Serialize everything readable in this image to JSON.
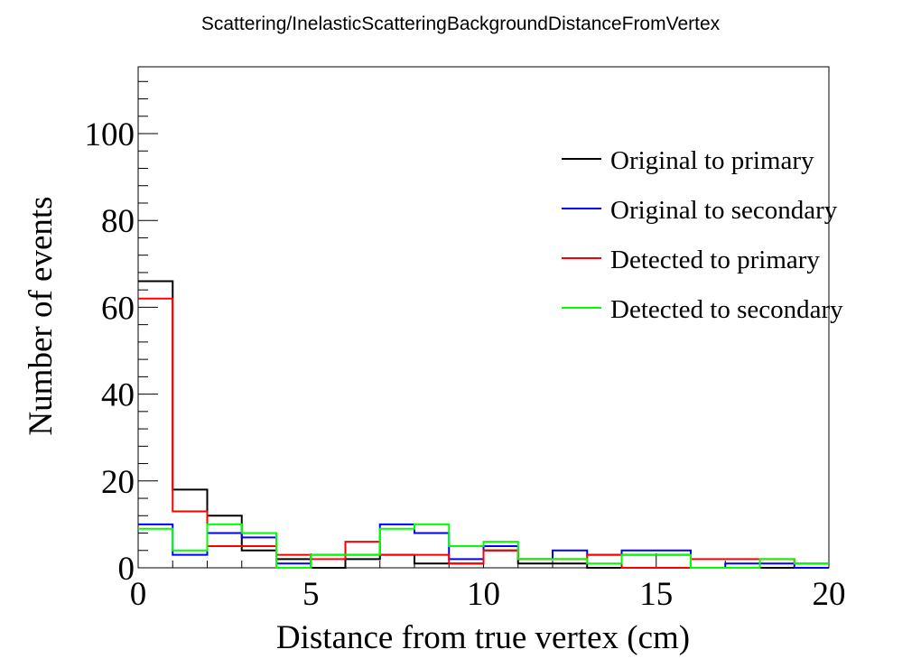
{
  "chart_data": {
    "type": "histogram",
    "title": "Scattering/InelasticScatteringBackgroundDistanceFromVertex",
    "xlabel": "Distance from true vertex (cm)",
    "ylabel": "Number of events",
    "xlim": [
      0,
      20
    ],
    "ylim": [
      0,
      100
    ],
    "bin_edges": [
      0,
      1,
      2,
      3,
      4,
      5,
      6,
      7,
      8,
      9,
      10,
      11,
      12,
      13,
      14,
      15,
      16,
      17,
      18,
      19,
      20
    ],
    "x_ticks": [
      0,
      5,
      10,
      15,
      20
    ],
    "y_ticks": [
      0,
      20,
      40,
      60,
      80,
      100
    ],
    "x_tick_labels": [
      "0",
      "5",
      "10",
      "15",
      "20"
    ],
    "y_tick_labels": [
      "0",
      "20",
      "40",
      "60",
      "80",
      "100"
    ],
    "legend_position": "top-right",
    "grid": false,
    "series": [
      {
        "name": "Original to primary",
        "color": "#000000",
        "values": [
          66,
          18,
          12,
          4,
          2,
          0,
          2,
          3,
          1,
          1,
          4,
          1,
          1,
          0,
          3,
          3,
          0,
          0,
          0,
          0
        ]
      },
      {
        "name": "Original to secondary",
        "color": "#0000ff",
        "values": [
          10,
          3,
          8,
          7,
          1,
          3,
          3,
          10,
          8,
          2,
          5,
          2,
          4,
          3,
          4,
          4,
          0,
          1,
          1,
          0
        ]
      },
      {
        "name": "Detected to primary",
        "color": "#ff0000",
        "values": [
          62,
          13,
          5,
          5,
          3,
          2,
          6,
          3,
          3,
          1,
          4,
          2,
          2,
          3,
          0,
          0,
          2,
          2,
          2,
          1
        ]
      },
      {
        "name": "Detected to secondary",
        "color": "#00ff00",
        "values": [
          9,
          4,
          10,
          8,
          0,
          3,
          3,
          9,
          10,
          5,
          6,
          2,
          2,
          1,
          3,
          3,
          0,
          0,
          2,
          1
        ]
      }
    ]
  }
}
